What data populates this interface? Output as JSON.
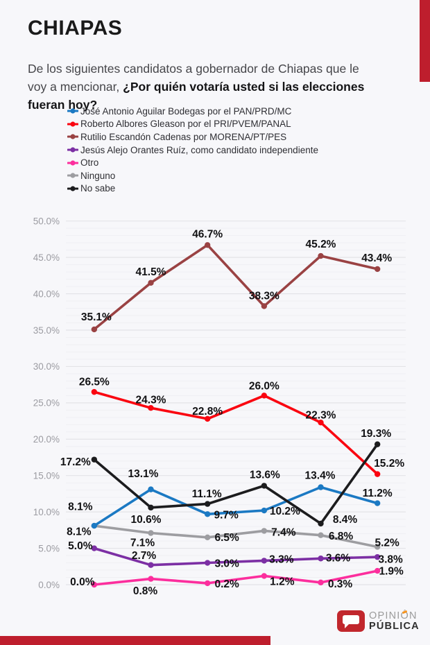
{
  "header": {
    "title": "CHIAPAS",
    "question_intro": "De los siguientes candidatos a gobernador de Chiapas que le voy a mencionar, ",
    "question_emphasis": "¿Por quién votaría usted si las elecciones fueran hoy?"
  },
  "chart_data": {
    "type": "line",
    "title": "",
    "x_axis": {
      "visible": false,
      "n_points": 6
    },
    "y_axis": {
      "min": 0,
      "max": 50,
      "major_step": 5,
      "minor_step": 1,
      "tick_labels": [
        "0.0%",
        "5.0%",
        "10.0%",
        "15.0%",
        "20.0%",
        "25.0%",
        "30.0%",
        "35.0%",
        "40.0%",
        "45.0%",
        "50.0%"
      ]
    },
    "grid": true,
    "legend_position": "top-left",
    "series": [
      {
        "name": "José Antonio Aguilar Bodegas por el PAN/PRD/MC",
        "color": "#1b79c3",
        "values": [
          8.1,
          13.1,
          9.7,
          10.2,
          13.4,
          11.2
        ],
        "label_offsets": [
          [
            -20,
            -28
          ],
          [
            -11,
            -23
          ],
          [
            27,
            1
          ],
          [
            30,
            1
          ],
          [
            -1,
            -17
          ],
          [
            0,
            -15
          ]
        ]
      },
      {
        "name": "Roberto Albores Gleason por el PRI/PVEM/PANAL",
        "color": "#fa0510",
        "values": [
          26.5,
          24.3,
          22.8,
          26.0,
          22.3,
          15.2
        ],
        "label_offsets": [
          [
            0,
            -15
          ],
          [
            0,
            -12
          ],
          [
            0,
            -11
          ],
          [
            0,
            -14
          ],
          [
            0,
            -11
          ],
          [
            17,
            -16
          ]
        ]
      },
      {
        "name": "Rutilio Escandón Cadenas por MORENA/PT/PES",
        "color": "#9a4243",
        "values": [
          35.1,
          41.5,
          46.7,
          38.3,
          45.2,
          43.4
        ],
        "label_offsets": [
          [
            3,
            -18
          ],
          [
            0,
            -16
          ],
          [
            0,
            -16
          ],
          [
            0,
            -15
          ],
          [
            0,
            -17
          ],
          [
            -1,
            -16
          ]
        ]
      },
      {
        "name": "Jesús Alejo Orantes Ruíz, como candidato independiente",
        "color": "#7c2fa4",
        "values": [
          5.0,
          2.7,
          3.0,
          3.3,
          3.6,
          3.8
        ],
        "label_offsets": [
          [
            -20,
            -4
          ],
          [
            -10,
            -14
          ],
          [
            28,
            1
          ],
          [
            25,
            -2
          ],
          [
            25,
            -1
          ],
          [
            19,
            3
          ]
        ]
      },
      {
        "name": "Otro",
        "color": "#fc2e9d",
        "values": [
          0.0,
          0.8,
          0.2,
          1.2,
          0.3,
          1.9
        ],
        "label_offsets": [
          [
            -17,
            -4
          ],
          [
            -8,
            17
          ],
          [
            28,
            1
          ],
          [
            26,
            8
          ],
          [
            28,
            2
          ],
          [
            20,
            0
          ]
        ]
      },
      {
        "name": "Ninguno",
        "color": "#9d9da1",
        "values": [
          8.1,
          7.1,
          6.5,
          7.4,
          6.8,
          5.2
        ],
        "label_offsets": [
          [
            -22,
            8
          ],
          [
            -12,
            14
          ],
          [
            28,
            0
          ],
          [
            28,
            2
          ],
          [
            29,
            1
          ],
          [
            14,
            -6
          ]
        ]
      },
      {
        "name": "No sabe",
        "color": "#1c1c1e",
        "values": [
          17.2,
          10.6,
          11.1,
          13.6,
          8.4,
          19.3
        ],
        "label_offsets": [
          [
            -27,
            3
          ],
          [
            -7,
            17
          ],
          [
            -1,
            -15
          ],
          [
            1,
            -16
          ],
          [
            35,
            -6
          ],
          [
            -2,
            -16
          ]
        ]
      }
    ],
    "z_order": [
      5,
      4,
      3,
      0,
      1,
      2,
      6
    ]
  },
  "footer": {
    "brand_line1_pre": "OPINI",
    "brand_accent_letter": "Ó",
    "brand_line1_post": "N",
    "brand_line2": "PÚBLICA"
  },
  "colors": {
    "accent_red": "#be1e2d",
    "logo_red": "#c1272d",
    "accent_orange": "#f7941d",
    "background": "#f7f7fa",
    "grid_major": "#e3e3e7",
    "grid_minor": "#efeff3",
    "axis_tick_text": "#9b9ba1",
    "data_label_text": "#111113"
  }
}
